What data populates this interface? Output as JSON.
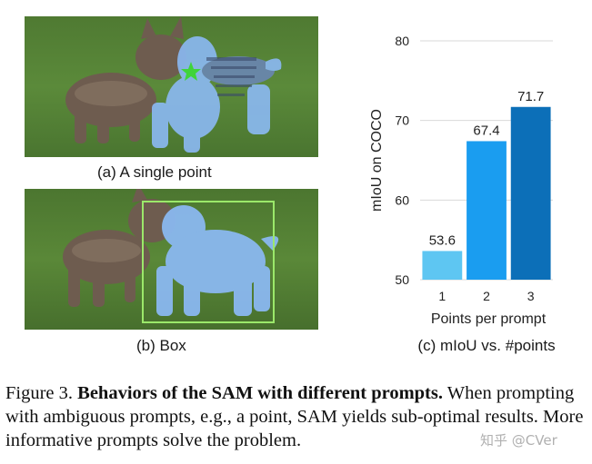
{
  "panels": {
    "a": {
      "caption": "(a) A single point",
      "prompt_type": "point"
    },
    "b": {
      "caption": "(b) Box",
      "prompt_type": "box"
    }
  },
  "chart_data": {
    "type": "bar",
    "title": "",
    "caption": "(c) mIoU vs. #points",
    "categories": [
      "1",
      "2",
      "3"
    ],
    "values": [
      53.6,
      67.4,
      71.7
    ],
    "value_labels": [
      "53.6",
      "67.4",
      "71.7"
    ],
    "bar_colors": [
      "#5ec6f2",
      "#1a9df0",
      "#0c6fb8"
    ],
    "xlabel": "Points per prompt",
    "ylabel": "mIoU on COCO",
    "ylim": [
      50,
      80
    ],
    "yticks": [
      50,
      60,
      70,
      80
    ],
    "grid": true
  },
  "figure_caption": {
    "label": "Figure 3.",
    "bold": "Behaviors of the SAM with different prompts.",
    "rest": "When prompting with ambiguous prompts, e.g., a point, SAM yields sub-optimal results. More informative prompts solve the problem."
  },
  "watermark": "知乎 @CVer",
  "colors": {
    "mask": "#8ab8f0",
    "box": "#9be86a",
    "star": "#3fd43a"
  }
}
